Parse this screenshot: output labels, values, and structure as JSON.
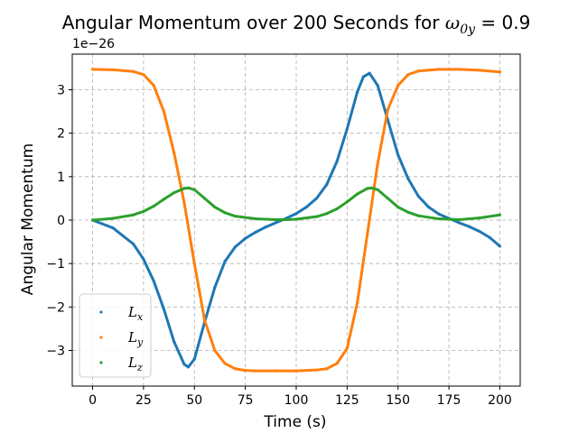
{
  "chart_data": {
    "type": "scatter",
    "title_prefix": "Angular Momentum over 200 Seconds for ",
    "title_omega": "ω",
    "title_subscript": "0y",
    "title_suffix": " = 0.9",
    "xlabel": "Time (s)",
    "ylabel": "Angular Momentum",
    "offset_label": "1e−26",
    "xlim": [
      -10,
      210
    ],
    "ylim": [
      -3.82,
      3.82
    ],
    "xticks": [
      0,
      25,
      50,
      75,
      100,
      125,
      150,
      175,
      200
    ],
    "xtick_labels": [
      "0",
      "25",
      "50",
      "75",
      "100",
      "125",
      "150",
      "175",
      "200"
    ],
    "yticks": [
      -3,
      -2,
      -1,
      0,
      1,
      2,
      3
    ],
    "ytick_labels": [
      "−3",
      "−2",
      "−1",
      "0",
      "1",
      "2",
      "3"
    ],
    "grid": true,
    "legend_position": "lower-left",
    "series": [
      {
        "name": "L",
        "subscript": "x",
        "color": "#1f77b4",
        "x": [
          0,
          10,
          20,
          25,
          30,
          35,
          40,
          45,
          47,
          50,
          55,
          60,
          65,
          70,
          75,
          80,
          85,
          90,
          95,
          100,
          105,
          110,
          115,
          120,
          125,
          130,
          133,
          136,
          140,
          145,
          150,
          155,
          160,
          165,
          170,
          175,
          180,
          185,
          190,
          195,
          200
        ],
        "y": [
          0.0,
          -0.18,
          -0.55,
          -0.9,
          -1.4,
          -2.05,
          -2.8,
          -3.32,
          -3.38,
          -3.2,
          -2.35,
          -1.55,
          -0.95,
          -0.62,
          -0.42,
          -0.28,
          -0.16,
          -0.06,
          0.04,
          0.15,
          0.3,
          0.5,
          0.82,
          1.35,
          2.1,
          2.95,
          3.3,
          3.38,
          3.1,
          2.3,
          1.5,
          0.95,
          0.55,
          0.3,
          0.14,
          0.04,
          -0.06,
          -0.15,
          -0.26,
          -0.4,
          -0.6
        ]
      },
      {
        "name": "L",
        "subscript": "y",
        "color": "#ff7f0e",
        "x": [
          0,
          10,
          20,
          25,
          30,
          35,
          40,
          45,
          50,
          55,
          60,
          65,
          70,
          75,
          80,
          90,
          100,
          110,
          115,
          120,
          125,
          130,
          135,
          140,
          145,
          150,
          155,
          160,
          170,
          180,
          190,
          200
        ],
        "y": [
          3.47,
          3.46,
          3.42,
          3.35,
          3.1,
          2.5,
          1.55,
          0.4,
          -1.0,
          -2.3,
          -3.0,
          -3.3,
          -3.42,
          -3.46,
          -3.47,
          -3.47,
          -3.47,
          -3.45,
          -3.42,
          -3.3,
          -2.95,
          -1.9,
          -0.3,
          1.3,
          2.55,
          3.1,
          3.35,
          3.43,
          3.47,
          3.47,
          3.45,
          3.41
        ]
      },
      {
        "name": "L",
        "subscript": "z",
        "color": "#2ca02c",
        "x": [
          0,
          10,
          20,
          25,
          30,
          35,
          40,
          45,
          47,
          50,
          55,
          60,
          65,
          70,
          80,
          90,
          95,
          100,
          110,
          115,
          120,
          125,
          130,
          135,
          137,
          140,
          145,
          150,
          155,
          160,
          170,
          180,
          190,
          200
        ],
        "y": [
          0.0,
          0.04,
          0.12,
          0.2,
          0.32,
          0.48,
          0.63,
          0.73,
          0.74,
          0.7,
          0.5,
          0.3,
          0.17,
          0.09,
          0.03,
          0.01,
          0.01,
          0.02,
          0.08,
          0.15,
          0.26,
          0.42,
          0.6,
          0.73,
          0.74,
          0.7,
          0.5,
          0.3,
          0.18,
          0.1,
          0.03,
          0.01,
          0.05,
          0.12
        ]
      }
    ]
  }
}
